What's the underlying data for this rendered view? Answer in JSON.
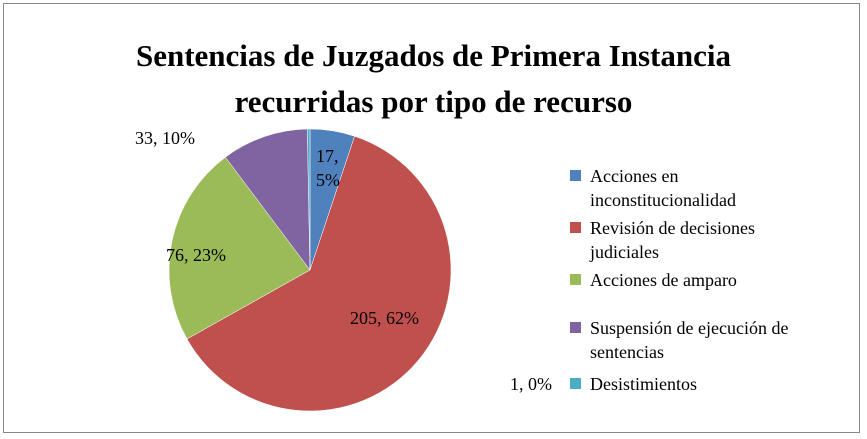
{
  "chart_data": {
    "type": "pie",
    "title": "Sentencias de Juzgados de Primera Instancia recurridas por tipo de recurso",
    "categories": [
      "Acciones en inconstitucionalidad",
      "Revisión de decisiones judiciales",
      "Acciones de amparo",
      "Suspensión de ejecución de sentencias",
      "Desistimientos"
    ],
    "values": [
      17,
      205,
      76,
      33,
      1
    ],
    "value_labels": [
      "17, 5%",
      "205, 62%",
      "76, 23%",
      "33, 10%",
      "1, 0%"
    ],
    "colors": [
      "#4f81bd",
      "#c0504d",
      "#9bbb59",
      "#8064a2",
      "#4bacc6"
    ],
    "legend": "right"
  }
}
